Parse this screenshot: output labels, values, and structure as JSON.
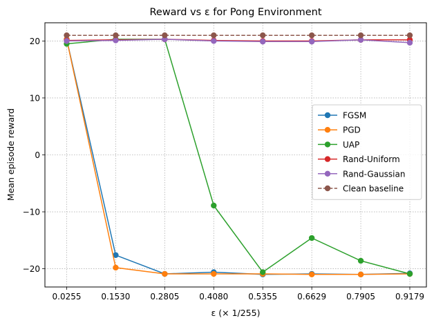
{
  "chart_data": {
    "type": "line",
    "title": "Reward vs ε for Pong Environment",
    "xlabel": "ε (× 1/255)",
    "ylabel": "Mean episode reward",
    "x": [
      0.0255,
      0.153,
      0.2805,
      0.408,
      0.5355,
      0.6629,
      0.7905,
      0.9179
    ],
    "x_tick_labels": [
      "0.0255",
      "0.1530",
      "0.2805",
      "0.4080",
      "0.5355",
      "0.6629",
      "0.7905",
      "0.9179"
    ],
    "y_ticks": [
      -20,
      -10,
      0,
      10,
      20
    ],
    "y_tick_labels": [
      "−20",
      "−10",
      "0",
      "10",
      "20"
    ],
    "ylim": [
      -23.2,
      23.2
    ],
    "grid": true,
    "legend_position": "center-right",
    "series": [
      {
        "name": "FGSM",
        "color": "#1f77b4",
        "style": "solid",
        "values": [
          20.3,
          -17.6,
          -20.9,
          -20.6,
          -21.0,
          -20.9,
          -21.0,
          -20.8
        ]
      },
      {
        "name": "PGD",
        "color": "#ff7f0e",
        "style": "solid",
        "values": [
          20.3,
          -19.8,
          -20.9,
          -20.9,
          -20.9,
          -21.0,
          -21.0,
          -20.9
        ]
      },
      {
        "name": "UAP",
        "color": "#2ca02c",
        "style": "solid",
        "values": [
          19.5,
          20.3,
          20.3,
          -8.9,
          -20.6,
          -14.6,
          -18.6,
          -20.9
        ]
      },
      {
        "name": "Rand-Uniform",
        "color": "#d62728",
        "style": "solid",
        "values": [
          20.1,
          20.2,
          20.3,
          20.1,
          20.0,
          20.0,
          20.2,
          20.2
        ]
      },
      {
        "name": "Rand-Gaussian",
        "color": "#9467bd",
        "style": "solid",
        "values": [
          20.0,
          20.1,
          20.3,
          20.0,
          19.9,
          19.9,
          20.2,
          19.7
        ]
      },
      {
        "name": "Clean baseline",
        "color": "#8c564b",
        "style": "dashed",
        "values": [
          21.0,
          21.0,
          21.0,
          21.0,
          21.0,
          21.0,
          21.0,
          21.0
        ]
      }
    ]
  }
}
